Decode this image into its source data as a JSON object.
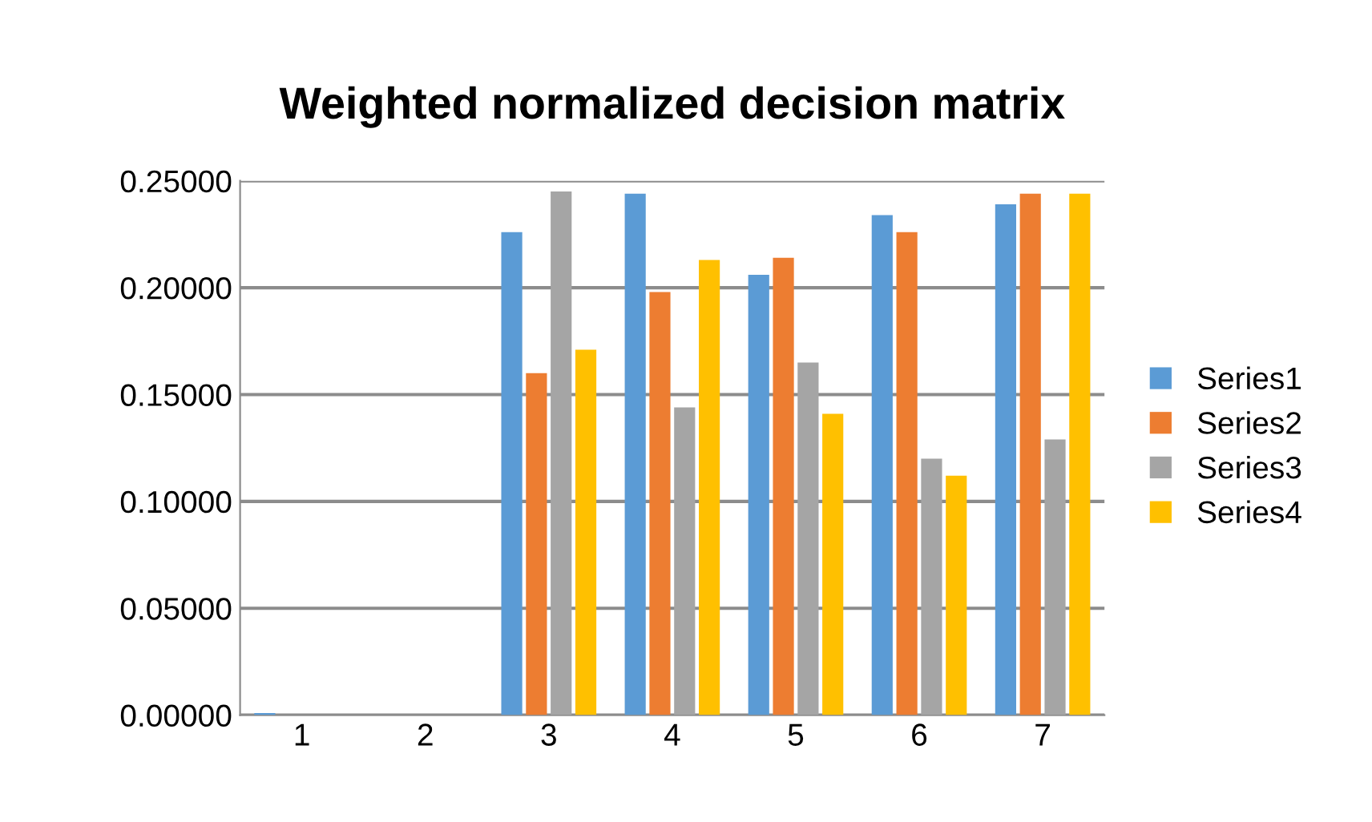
{
  "chart_data": {
    "type": "bar",
    "title": "Weighted normalized decision matrix",
    "categories": [
      "1",
      "2",
      "3",
      "4",
      "5",
      "6",
      "7"
    ],
    "series": [
      {
        "name": "Series1",
        "color": "#5b9bd5",
        "values": [
          0.001,
          0,
          0.226,
          0.244,
          0.206,
          0.234,
          0.239
        ]
      },
      {
        "name": "Series2",
        "color": "#ed7d31",
        "values": [
          0,
          0,
          0.16,
          0.198,
          0.214,
          0.226,
          0.244
        ]
      },
      {
        "name": "Series3",
        "color": "#a5a5a5",
        "values": [
          0,
          0,
          0.245,
          0.144,
          0.165,
          0.12,
          0.129
        ]
      },
      {
        "name": "Series4",
        "color": "#ffc000",
        "values": [
          0,
          0,
          0.171,
          0.213,
          0.141,
          0.112,
          0.244
        ]
      }
    ],
    "ylim": [
      0,
      0.25
    ],
    "yticks": [
      {
        "value": 0,
        "label": "0.00000"
      },
      {
        "value": 0.05,
        "label": "0.05000"
      },
      {
        "value": 0.1,
        "label": "0.10000"
      },
      {
        "value": 0.15,
        "label": "0.15000"
      },
      {
        "value": 0.2,
        "label": "0.20000"
      },
      {
        "value": 0.25,
        "label": "0.25000"
      }
    ],
    "grid": "y",
    "legend": "right"
  }
}
